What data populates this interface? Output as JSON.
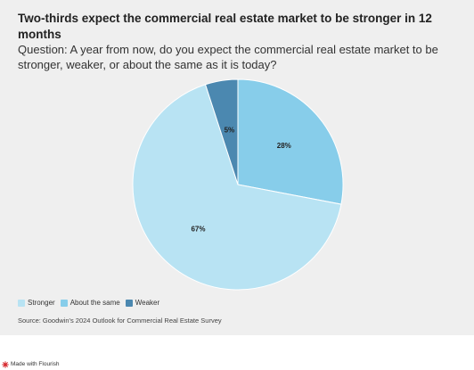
{
  "title": "Two-thirds expect the commercial real estate market to be stronger in 12 months",
  "subtitle": "Question: A year from now, do you expect the commercial real estate market to be stronger, weaker, or about the same as it is today?",
  "source": "Source: Goodwin's 2024 Outlook for Commercial Real Estate Survey",
  "credit": "Made with Flourish",
  "chart_data": {
    "type": "pie",
    "title": "Two-thirds expect the commercial real estate market to be stronger in 12 months",
    "legend_position": "bottom-left",
    "slices": [
      {
        "label": "About the same",
        "value": 28,
        "display": "28%",
        "color": "#87cdea"
      },
      {
        "label": "Stronger",
        "value": 67,
        "display": "67%",
        "color": "#b8e3f3"
      },
      {
        "label": "Weaker",
        "value": 5,
        "display": "5%",
        "color": "#4b88b0"
      }
    ],
    "legend": [
      {
        "label": "Stronger",
        "color": "#b8e3f3"
      },
      {
        "label": "About the same",
        "color": "#87cdea"
      },
      {
        "label": "Weaker",
        "color": "#4b88b0"
      }
    ]
  }
}
